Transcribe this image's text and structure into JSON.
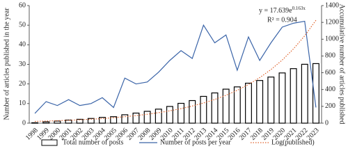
{
  "chart_data": {
    "type": "bar-line",
    "y_label": "Number of articles published in the year",
    "y2_label": "Accumulative number of articles published",
    "categories": [
      "1998",
      "1999",
      "2000",
      "2001",
      "2002",
      "2003",
      "2004",
      "2005",
      "2006",
      "2007",
      "2008",
      "2009",
      "2010",
      "2011",
      "2012",
      "2013",
      "2014",
      "2015",
      "2016",
      "2017",
      "2018",
      "2019",
      "2020",
      "2021",
      "2022",
      "2023"
    ],
    "series": [
      {
        "name": "Total number of posts",
        "kind": "bar",
        "axis": "y2",
        "color": "#000000",
        "values": [
          5,
          16,
          25,
          37,
          46,
          56,
          69,
          77,
          100,
          120,
          141,
          167,
          199,
          236,
          269,
          319,
          360,
          405,
          432,
          476,
          508,
          549,
          598,
          649,
          701,
          709
        ]
      },
      {
        "name": "Number of posts per year",
        "kind": "line",
        "color": "#3a64a8",
        "values": [
          5,
          11,
          9,
          12,
          9,
          10,
          13,
          8,
          23,
          20,
          21,
          26,
          32,
          37,
          33,
          50,
          41,
          45,
          27,
          44,
          32,
          41,
          49,
          51,
          52,
          8
        ]
      },
      {
        "name": "Log(published)",
        "kind": "dotted",
        "axis": "y2",
        "color": "#e0622a",
        "values": [
          21,
          25,
          29,
          34,
          40,
          47,
          55,
          65,
          77,
          90,
          106,
          125,
          147,
          173,
          204,
          240,
          282,
          332,
          391,
          460,
          542,
          638,
          751,
          884,
          1040,
          1225
        ]
      }
    ],
    "equation": {
      "base": "y = 17.639e",
      "exponent": "0.163x"
    },
    "r_squared": "R² = 0.904",
    "ylim": [
      0,
      60
    ],
    "yticks": [
      0,
      10,
      20,
      30,
      40,
      50,
      60
    ],
    "y2lim": [
      0,
      1400
    ],
    "y2ticks": [
      0,
      200,
      400,
      600,
      800,
      1000,
      1200,
      1400
    ]
  }
}
